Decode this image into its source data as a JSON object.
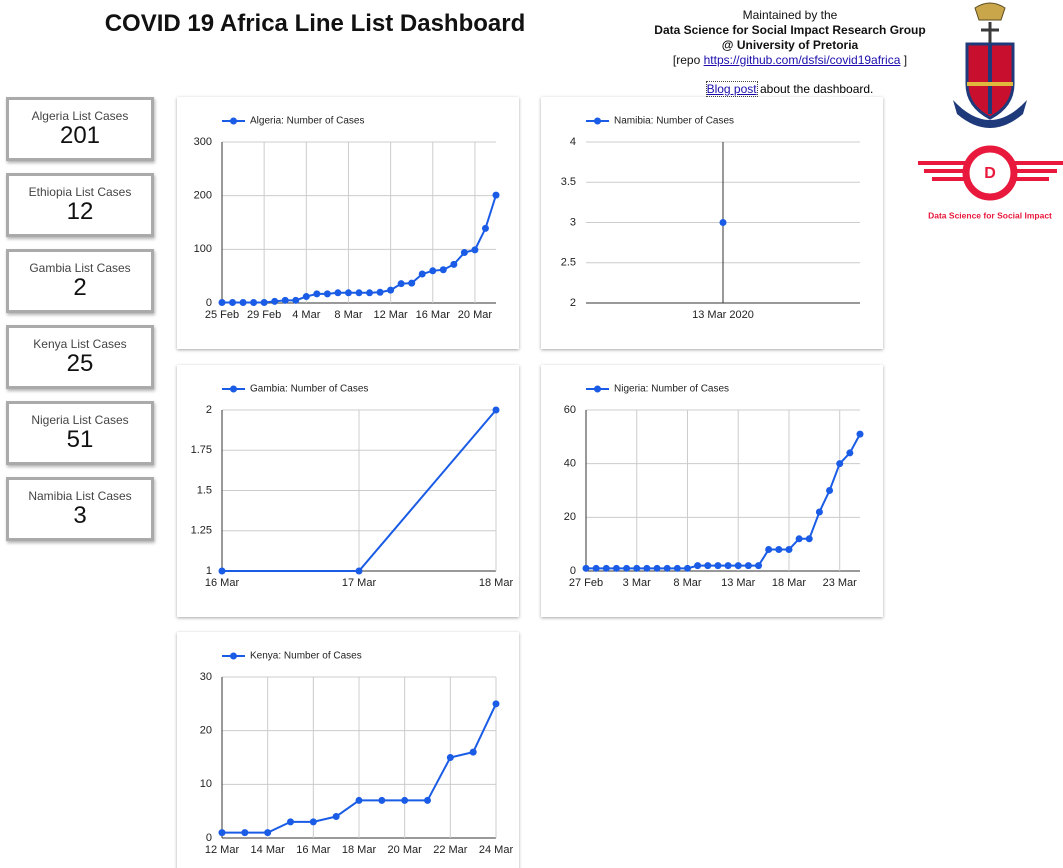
{
  "header": {
    "title": "COVID 19 Africa Line List Dashboard",
    "maintained": "Maintained by the",
    "group": "Data Science for Social Impact Research Group",
    "university": "@ University of Pretoria",
    "repo_prefix": "[repo",
    "repo_link": "https://github.com/dsfsi/covid19africa",
    "repo_suffix": "]",
    "blog_link": "Blog post",
    "blog_suffix": "about the dashboard.",
    "logo_letter": "D",
    "logo_text": "Data Science for Social Impact"
  },
  "kpis": [
    {
      "label": "Algeria List Cases",
      "value": 201
    },
    {
      "label": "Ethiopia List Cases",
      "value": 12
    },
    {
      "label": "Gambia List Cases",
      "value": 2
    },
    {
      "label": "Kenya List Cases",
      "value": 25
    },
    {
      "label": "Nigeria List Cases",
      "value": 51
    },
    {
      "label": "Namibia List Cases",
      "value": 3
    }
  ],
  "chart_data": [
    {
      "type": "line",
      "grid": true,
      "legend": "top",
      "x": [
        "25 Feb",
        "26 Feb",
        "27 Feb",
        "28 Feb",
        "29 Feb",
        "1 Mar",
        "2 Mar",
        "3 Mar",
        "4 Mar",
        "5 Mar",
        "6 Mar",
        "7 Mar",
        "8 Mar",
        "9 Mar",
        "10 Mar",
        "11 Mar",
        "12 Mar",
        "13 Mar",
        "14 Mar",
        "15 Mar",
        "16 Mar",
        "17 Mar",
        "18 Mar",
        "19 Mar",
        "20 Mar",
        "21 Mar",
        "22 Mar"
      ],
      "xticks": [
        "25 Feb",
        "29 Feb",
        "4 Mar",
        "8 Mar",
        "12 Mar",
        "16 Mar",
        "20 Mar"
      ],
      "ylim": [
        0,
        300
      ],
      "yticks": [
        0,
        100,
        200,
        300
      ],
      "series": [
        {
          "name": "Algeria: Number of Cases",
          "color": "#1a5ce6",
          "values": [
            1,
            1,
            1,
            1,
            1,
            3,
            5,
            5,
            12,
            17,
            17,
            19,
            19,
            19,
            19,
            20,
            24,
            36,
            37,
            54,
            60,
            62,
            72,
            94,
            99,
            139,
            201
          ]
        }
      ]
    },
    {
      "type": "line",
      "grid": true,
      "legend": "top",
      "x": [
        "13 Mar 2020"
      ],
      "xticks": [
        "13 Mar 2020"
      ],
      "ylim": [
        2,
        4
      ],
      "yticks": [
        2,
        2.5,
        3,
        3.5,
        4
      ],
      "series": [
        {
          "name": "Namibia: Number of Cases",
          "color": "#1a5ce6",
          "values": [
            3
          ]
        }
      ]
    },
    {
      "type": "line",
      "grid": true,
      "legend": "top",
      "x": [
        "16 Mar",
        "17 Mar",
        "18 Mar"
      ],
      "xticks": [
        "16 Mar",
        "17 Mar",
        "18 Mar"
      ],
      "ylim": [
        1,
        2
      ],
      "yticks": [
        1,
        1.25,
        1.5,
        1.75,
        2
      ],
      "series": [
        {
          "name": "Gambia: Number of Cases",
          "color": "#1a5ce6",
          "values": [
            1,
            1,
            2
          ]
        }
      ]
    },
    {
      "type": "line",
      "grid": true,
      "legend": "top",
      "x": [
        "27 Feb",
        "28 Feb",
        "29 Feb",
        "1 Mar",
        "2 Mar",
        "3 Mar",
        "4 Mar",
        "5 Mar",
        "6 Mar",
        "7 Mar",
        "8 Mar",
        "9 Mar",
        "10 Mar",
        "11 Mar",
        "12 Mar",
        "13 Mar",
        "14 Mar",
        "15 Mar",
        "16 Mar",
        "17 Mar",
        "18 Mar",
        "19 Mar",
        "20 Mar",
        "21 Mar",
        "22 Mar",
        "23 Mar",
        "24 Mar",
        "25 Mar"
      ],
      "xticks": [
        "27 Feb",
        "3 Mar",
        "8 Mar",
        "13 Mar",
        "18 Mar",
        "23 Mar"
      ],
      "ylim": [
        0,
        60
      ],
      "yticks": [
        0,
        20,
        40,
        60
      ],
      "series": [
        {
          "name": "Nigeria: Number of Cases",
          "color": "#1a5ce6",
          "values": [
            1,
            1,
            1,
            1,
            1,
            1,
            1,
            1,
            1,
            1,
            1,
            2,
            2,
            2,
            2,
            2,
            2,
            2,
            8,
            8,
            8,
            12,
            12,
            22,
            30,
            40,
            44,
            51
          ]
        }
      ]
    },
    {
      "type": "line",
      "grid": true,
      "legend": "top",
      "x": [
        "12 Mar",
        "13 Mar",
        "14 Mar",
        "15 Mar",
        "16 Mar",
        "17 Mar",
        "18 Mar",
        "19 Mar",
        "20 Mar",
        "21 Mar",
        "22 Mar",
        "23 Mar",
        "24 Mar"
      ],
      "xticks": [
        "12 Mar",
        "14 Mar",
        "16 Mar",
        "18 Mar",
        "20 Mar",
        "22 Mar",
        "24 Mar"
      ],
      "ylim": [
        0,
        30
      ],
      "yticks": [
        0,
        10,
        20,
        30
      ],
      "series": [
        {
          "name": "Kenya: Number of Cases",
          "color": "#1a5ce6",
          "values": [
            1,
            1,
            1,
            3,
            3,
            4,
            7,
            7,
            7,
            7,
            15,
            16,
            25
          ]
        }
      ]
    }
  ]
}
